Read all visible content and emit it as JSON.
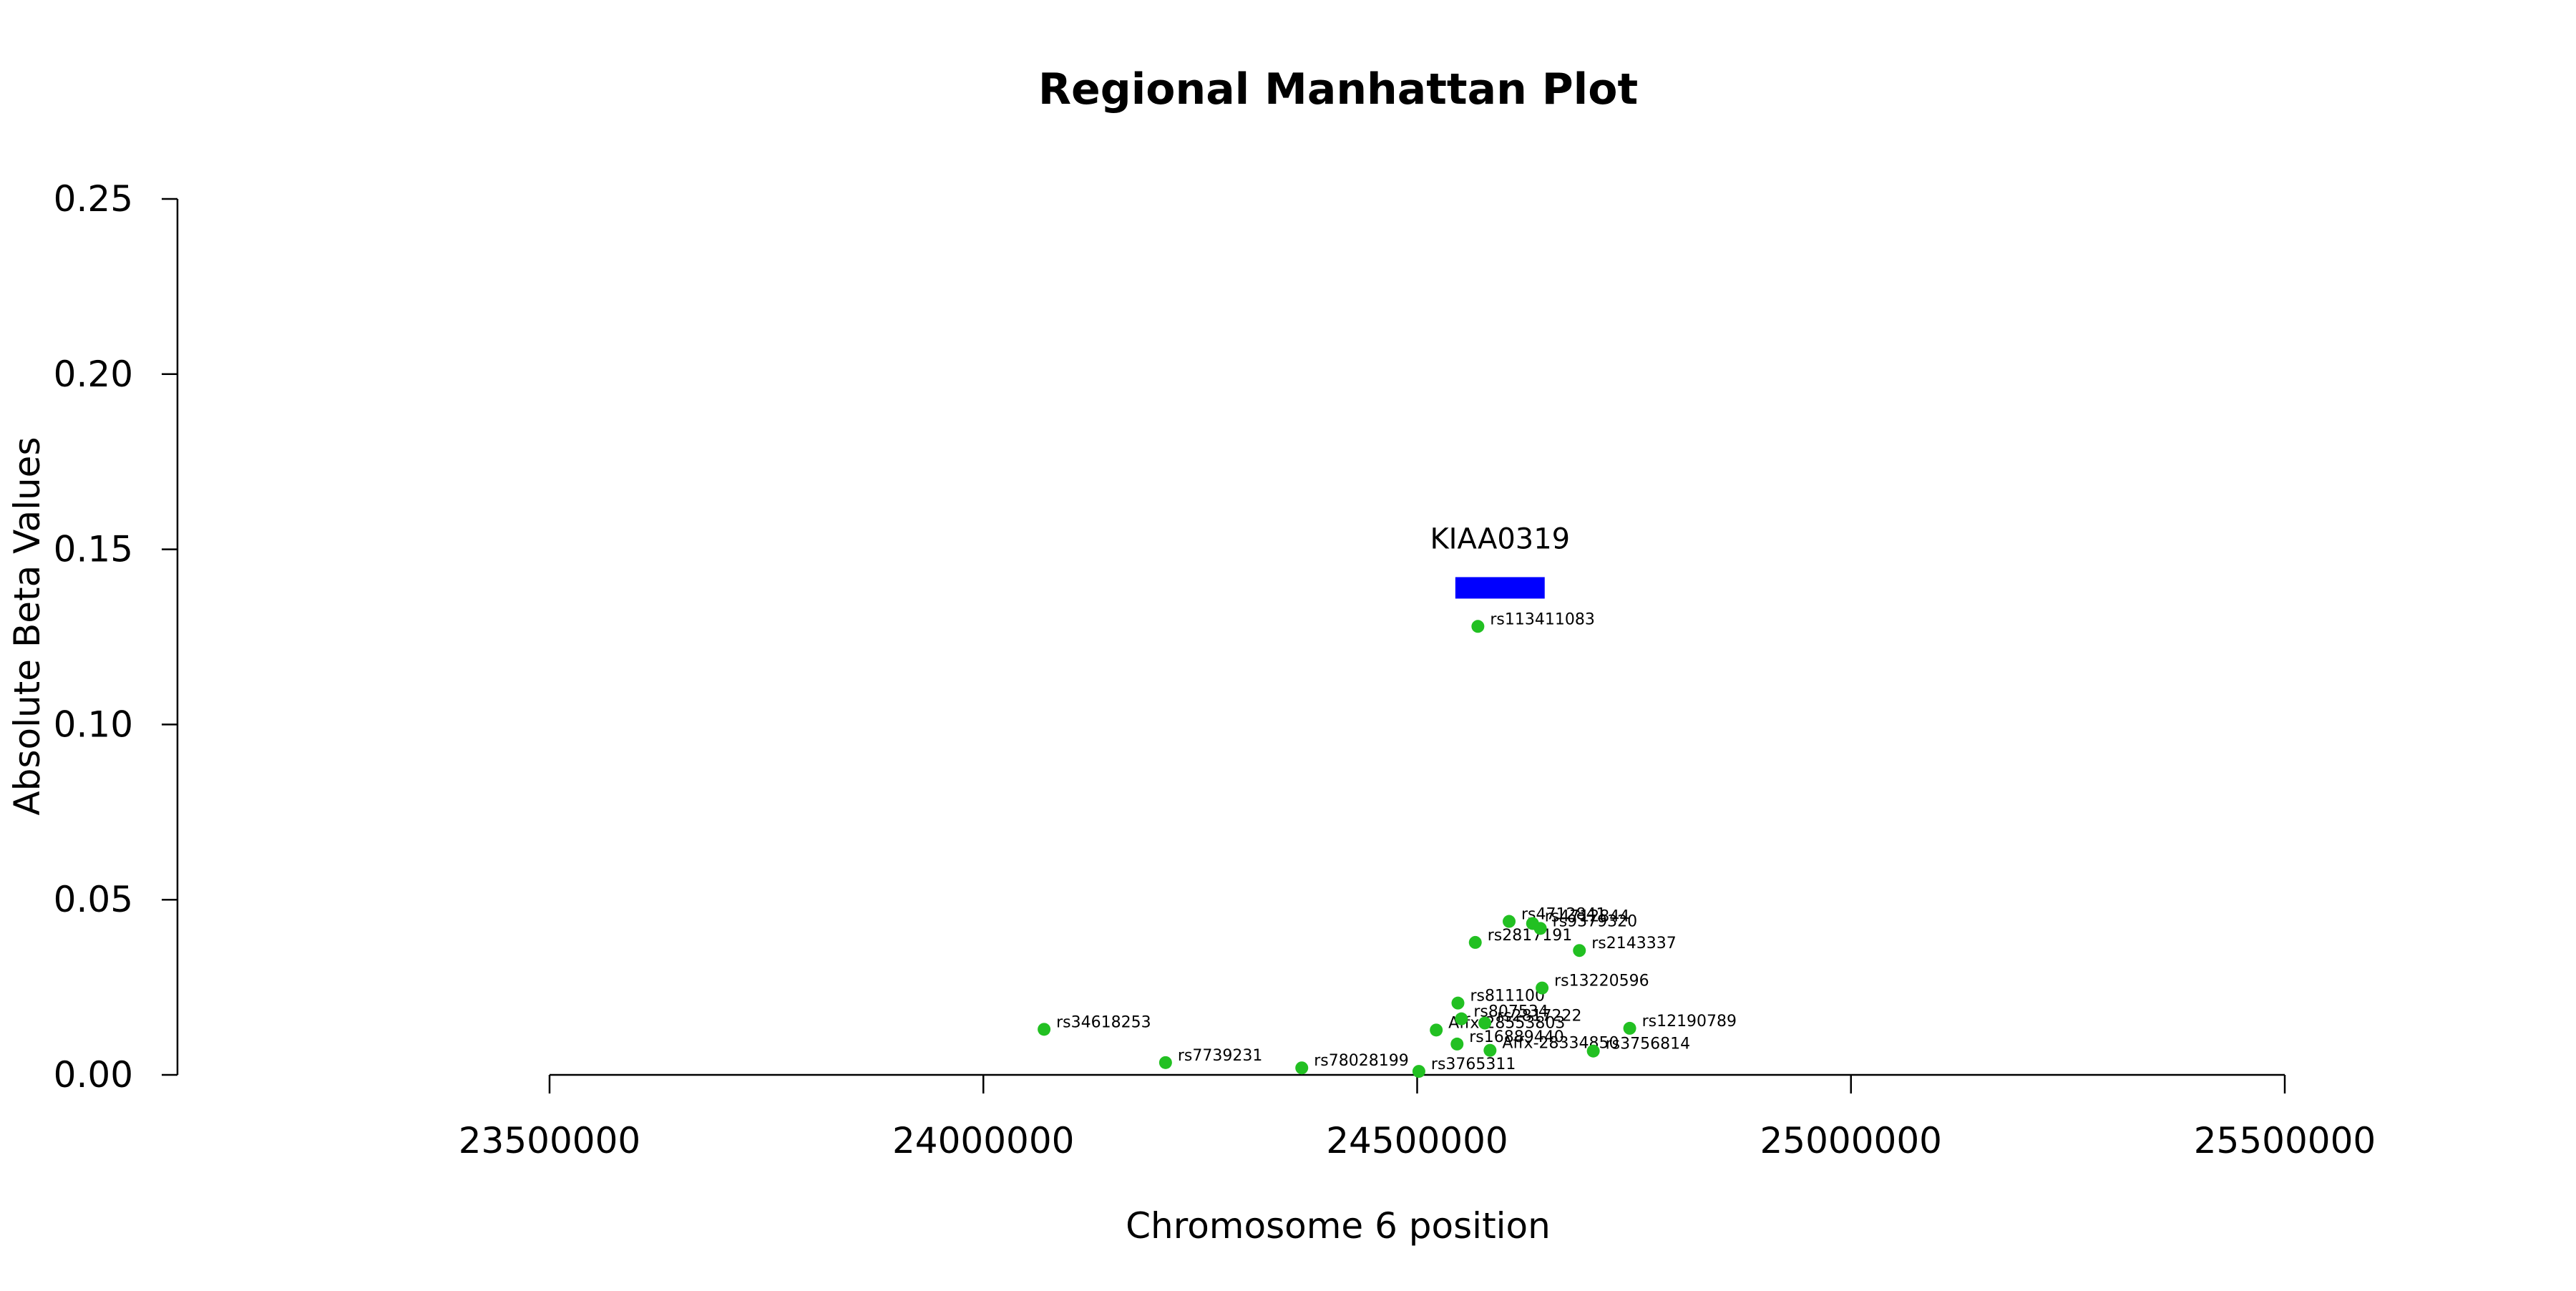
{
  "chart_data": {
    "type": "scatter",
    "title": "Regional Manhattan Plot",
    "xlabel": "Chromosome 6 position",
    "ylabel": "Absolute Beta Values",
    "xlim": [
      23500000,
      25500000
    ],
    "ylim": [
      0,
      0.25
    ],
    "xticks": [
      "23500000",
      "24000000",
      "24500000",
      "25000000",
      "25500000"
    ],
    "yticks": [
      "0.00",
      "0.05",
      "0.10",
      "0.15",
      "0.20",
      "0.25"
    ],
    "grid": false,
    "point_color": "#22c022",
    "gene_color": "#0000ff",
    "gene": {
      "name": "KIAA0319",
      "start": 24544000,
      "end": 24647000,
      "y": 0.139
    },
    "points": [
      {
        "id": "rs34618253",
        "x": 24070000,
        "y": 0.013
      },
      {
        "id": "rs7739231",
        "x": 24210000,
        "y": 0.0035
      },
      {
        "id": "rs78028199",
        "x": 24367000,
        "y": 0.002
      },
      {
        "id": "rs3765311",
        "x": 24502000,
        "y": 0.001
      },
      {
        "id": "Affx-28553803",
        "x": 24522000,
        "y": 0.0128
      },
      {
        "id": "rs811100",
        "x": 24547000,
        "y": 0.0205
      },
      {
        "id": "rs807534",
        "x": 24551000,
        "y": 0.016
      },
      {
        "id": "rs16889440",
        "x": 24546000,
        "y": 0.0088
      },
      {
        "id": "rs2817191",
        "x": 24567000,
        "y": 0.0378
      },
      {
        "id": "rs113411083",
        "x": 24570000,
        "y": 0.128
      },
      {
        "id": "rs2817222",
        "x": 24578000,
        "y": 0.0148
      },
      {
        "id": "Affx-28334850",
        "x": 24584000,
        "y": 0.007
      },
      {
        "id": "rs4712841",
        "x": 24606000,
        "y": 0.0438
      },
      {
        "id": "rs4712844",
        "x": 24633000,
        "y": 0.0432
      },
      {
        "id": "rs9379320",
        "x": 24642000,
        "y": 0.0418
      },
      {
        "id": "rs13220596",
        "x": 24644000,
        "y": 0.0248
      },
      {
        "id": "rs2143337",
        "x": 24687000,
        "y": 0.0355
      },
      {
        "id": "rs3756814",
        "x": 24703000,
        "y": 0.0068
      },
      {
        "id": "rs12190789",
        "x": 24745000,
        "y": 0.0133
      }
    ]
  }
}
